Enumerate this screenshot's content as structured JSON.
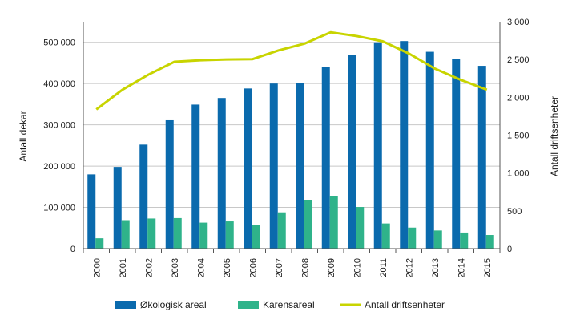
{
  "chart_data": {
    "type": "bar",
    "categories": [
      "2000",
      "2001",
      "2002",
      "2003",
      "2004",
      "2005",
      "2006",
      "2007",
      "2008",
      "2009",
      "2010",
      "2011",
      "2012",
      "2013",
      "2014",
      "2015"
    ],
    "series": [
      {
        "name": "Økologisk areal",
        "type": "bar",
        "axis": "left",
        "color": "#0a6aad",
        "values": [
          180000,
          198000,
          252000,
          311000,
          349000,
          365000,
          388000,
          400000,
          402000,
          440000,
          470000,
          500000,
          503000,
          477000,
          460000,
          443000
        ]
      },
      {
        "name": "Karensareal",
        "type": "bar",
        "axis": "left",
        "color": "#2fb38a",
        "values": [
          25000,
          69000,
          73000,
          74000,
          63000,
          66000,
          58000,
          88000,
          118000,
          128000,
          101000,
          61000,
          51000,
          44000,
          39000,
          33000
        ]
      },
      {
        "name": "Antall driftsenheter",
        "type": "line",
        "axis": "right",
        "color": "#c8d400",
        "values": [
          1840,
          2100,
          2300,
          2470,
          2490,
          2500,
          2505,
          2620,
          2710,
          2860,
          2810,
          2740,
          2580,
          2380,
          2230,
          2100
        ]
      }
    ],
    "ylabel": "Antall dekar",
    "ylabel_right": "Antall driftsenheter",
    "ylim": [
      0,
      550000
    ],
    "ylim_right": [
      0,
      3000
    ],
    "yticks": [
      0,
      100000,
      200000,
      300000,
      400000,
      500000
    ],
    "yticks_labels": [
      "0",
      "100 000",
      "200 000",
      "300 000",
      "400 000",
      "500 000"
    ],
    "yticks_right": [
      0,
      500,
      1000,
      1500,
      2000,
      2500,
      3000
    ],
    "yticks_right_labels": [
      "0",
      "500",
      "1 000",
      "1 500",
      "2 000",
      "2 500",
      "3 000"
    ],
    "grid": true,
    "legend_position": "bottom"
  }
}
